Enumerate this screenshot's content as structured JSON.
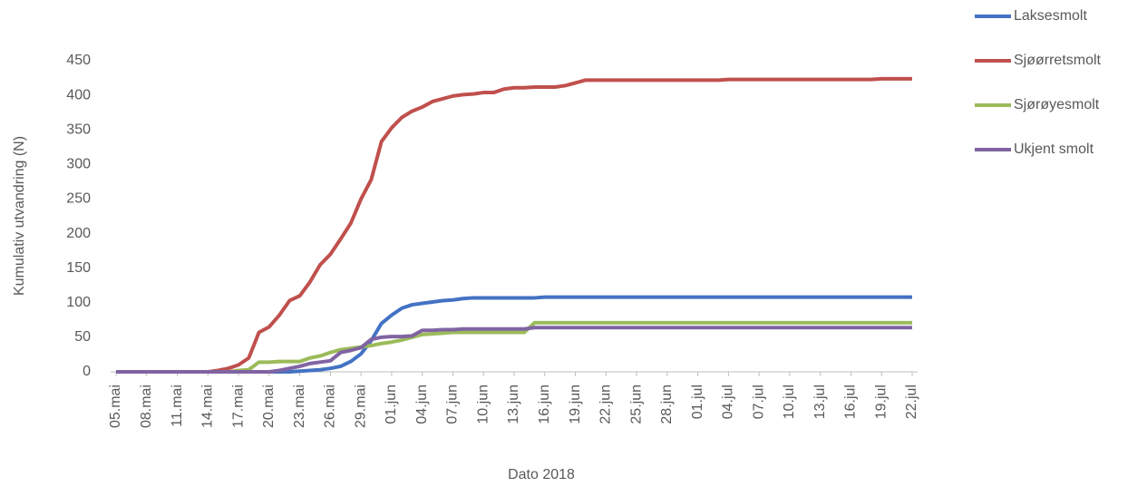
{
  "chart_data": {
    "type": "line",
    "x_label": "Dato 2018",
    "y_label": "Kumulativ utvandring (N)",
    "categories": [
      "05.mai",
      null,
      null,
      "08.mai",
      null,
      null,
      "11.mai",
      null,
      null,
      "14.mai",
      null,
      null,
      "17.mai",
      null,
      null,
      "20.mai",
      null,
      null,
      "23.mai",
      null,
      null,
      "26.mai",
      null,
      null,
      "29.mai",
      null,
      null,
      "01.jun",
      null,
      null,
      "04.jun",
      null,
      null,
      "07.jun",
      null,
      null,
      "10.jun",
      null,
      null,
      "13.jun",
      null,
      null,
      "16.jun",
      null,
      null,
      "19.jun",
      null,
      null,
      "22.jun",
      null,
      null,
      "25.jun",
      null,
      null,
      "28.jun",
      null,
      null,
      "01.jul",
      null,
      null,
      "04.jul",
      null,
      null,
      "07.jul",
      null,
      null,
      "10.jul",
      null,
      null,
      "13.jul",
      null,
      null,
      "16.jul",
      null,
      null,
      "19.jul",
      null,
      null,
      "22.jul"
    ],
    "series": [
      {
        "name": "Laksesmolt",
        "color": "#4472c4",
        "values": [
          0,
          0,
          0,
          0,
          0,
          0,
          0,
          0,
          0,
          0,
          0,
          0,
          0,
          0,
          0,
          0,
          0,
          0,
          1,
          2,
          3,
          5,
          8,
          15,
          26,
          45,
          70,
          82,
          92,
          97,
          99,
          101,
          103,
          104,
          106,
          107,
          107,
          107,
          107,
          107,
          107,
          107,
          108,
          108,
          108,
          108,
          108,
          108,
          108,
          108,
          108,
          108,
          108,
          108,
          108,
          108,
          108,
          108,
          108,
          108,
          108,
          108,
          108,
          108,
          108,
          108,
          108,
          108,
          108,
          108,
          108,
          108,
          108,
          108,
          108,
          108,
          108,
          108,
          108
        ]
      },
      {
        "name": "Sjøørretsmolt",
        "color": "#c0504d",
        "values": [
          0,
          0,
          0,
          0,
          0,
          0,
          0,
          0,
          0,
          0,
          2,
          5,
          10,
          20,
          57,
          65,
          82,
          103,
          110,
          130,
          155,
          170,
          192,
          215,
          250,
          278,
          333,
          353,
          368,
          377,
          383,
          391,
          395,
          399,
          401,
          402,
          404,
          404,
          409,
          411,
          411,
          412,
          412,
          412,
          414,
          418,
          422,
          422,
          422,
          422,
          422,
          422,
          422,
          422,
          422,
          422,
          422,
          422,
          422,
          422,
          423,
          423,
          423,
          423,
          423,
          423,
          423,
          423,
          423,
          423,
          423,
          423,
          423,
          423,
          423,
          424,
          424,
          424,
          424
        ]
      },
      {
        "name": "Sjørøyesmolt",
        "color": "#9bbb59",
        "values": [
          0,
          0,
          0,
          0,
          0,
          0,
          0,
          0,
          0,
          0,
          0,
          0,
          2,
          3,
          14,
          14,
          15,
          15,
          15,
          20,
          23,
          28,
          32,
          34,
          36,
          38,
          41,
          43,
          46,
          50,
          54,
          55,
          56,
          57,
          57,
          57,
          57,
          57,
          57,
          57,
          57,
          71,
          71,
          71,
          71,
          71,
          71,
          71,
          71,
          71,
          71,
          71,
          71,
          71,
          71,
          71,
          71,
          71,
          71,
          71,
          71,
          71,
          71,
          71,
          71,
          71,
          71,
          71,
          71,
          71,
          71,
          71,
          71,
          71,
          71,
          71,
          71,
          71,
          71
        ]
      },
      {
        "name": "Ukjent smolt",
        "color": "#8064a2",
        "values": [
          0,
          0,
          0,
          0,
          0,
          0,
          0,
          0,
          0,
          0,
          0,
          0,
          0,
          0,
          0,
          0,
          2,
          5,
          8,
          12,
          14,
          16,
          28,
          31,
          35,
          47,
          50,
          51,
          51,
          52,
          60,
          60,
          61,
          61,
          62,
          62,
          62,
          62,
          62,
          62,
          62,
          64,
          64,
          64,
          64,
          64,
          64,
          64,
          64,
          64,
          64,
          64,
          64,
          64,
          64,
          64,
          64,
          64,
          64,
          64,
          64,
          64,
          64,
          64,
          64,
          64,
          64,
          64,
          64,
          64,
          64,
          64,
          64,
          64,
          64,
          64,
          64,
          64,
          64
        ]
      }
    ],
    "ylim": [
      0,
      450
    ],
    "yticks": [
      0,
      50,
      100,
      150,
      200,
      250,
      300,
      350,
      400,
      450
    ],
    "grid": false,
    "legend": "right"
  }
}
